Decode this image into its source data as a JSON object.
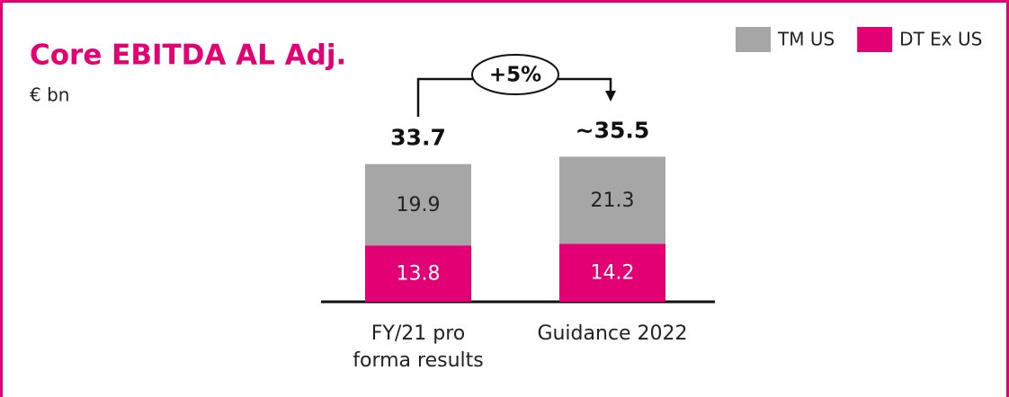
{
  "chart_data": {
    "type": "stacked_bar",
    "title": "Core EBITDA AL Adj.",
    "subtitle": "€ bn",
    "categories": [
      "FY/21 pro forma results",
      "Guidance 2022"
    ],
    "series": [
      {
        "name": "DT Ex US",
        "color": "#e20074",
        "label_color": "#ffffff",
        "values": [
          13.8,
          14.2
        ]
      },
      {
        "name": "TM US",
        "color": "#a6a6a6",
        "label_color": "#222222",
        "values": [
          19.9,
          21.3
        ]
      }
    ],
    "totals": [
      33.7,
      35.5
    ],
    "total_labels": [
      "33.7",
      "~35.5"
    ],
    "annotation": "+5%",
    "legend": "top-right"
  }
}
